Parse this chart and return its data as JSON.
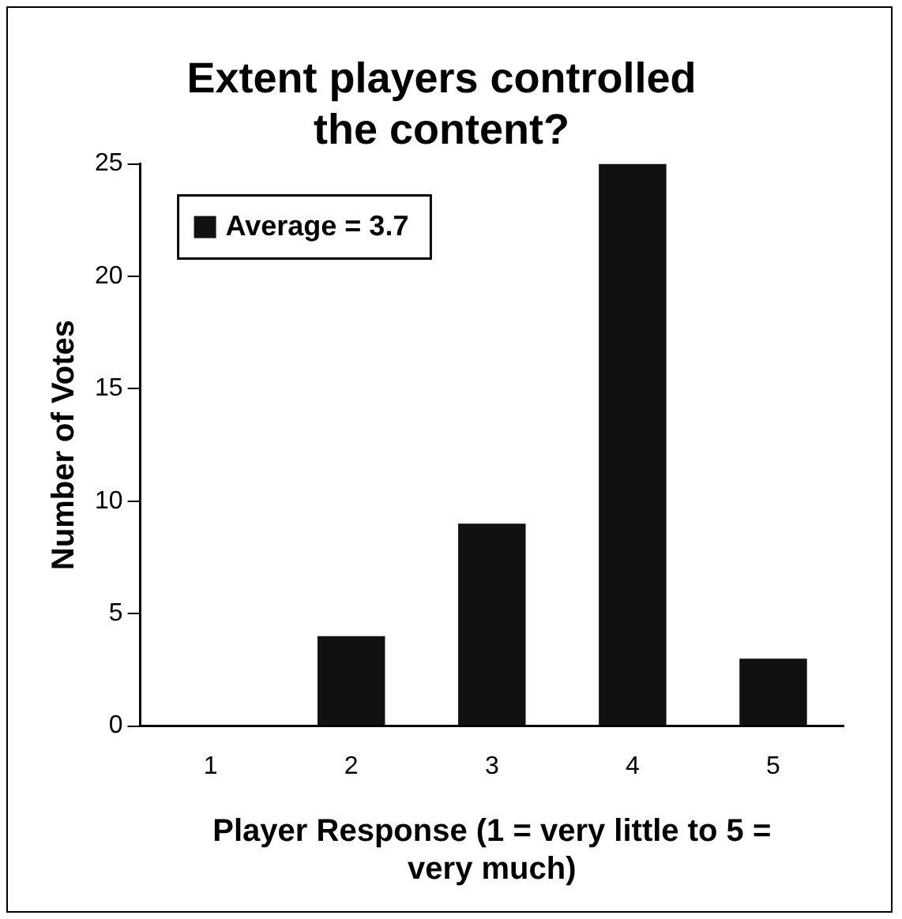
{
  "chart_data": {
    "type": "bar",
    "title": "Extent players controlled the content?",
    "xlabel": "Player Response (1 = very little to 5 = very much)",
    "ylabel": "Number of Votes",
    "categories": [
      "1",
      "2",
      "3",
      "4",
      "5"
    ],
    "series": [
      {
        "name": "Average = 3.7",
        "color": "#111111",
        "values": [
          0,
          4,
          9,
          25,
          3
        ]
      }
    ],
    "ylim": [
      0,
      25
    ],
    "yticks": [
      0,
      5,
      10,
      15,
      20,
      25
    ],
    "grid": false,
    "legend": "top left"
  }
}
